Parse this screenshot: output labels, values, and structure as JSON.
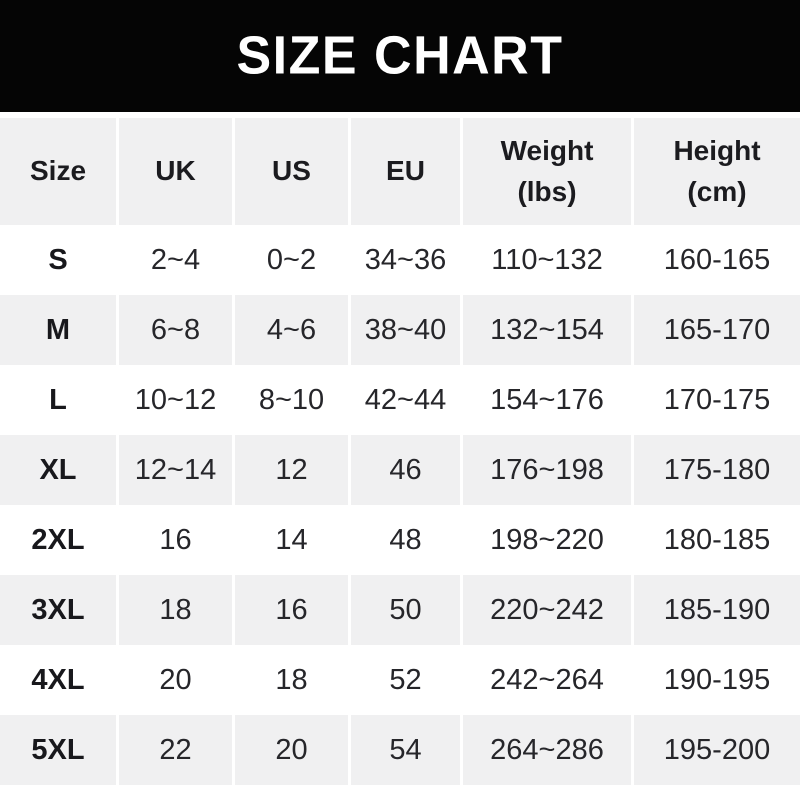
{
  "title": "SIZE CHART",
  "table": {
    "headers": [
      "Size",
      "UK",
      "US",
      "EU",
      "Weight\n(lbs)",
      "Height\n(cm)"
    ]
  },
  "chart_data": {
    "type": "table",
    "title": "SIZE CHART",
    "columns": [
      "Size",
      "UK",
      "US",
      "EU",
      "Weight (lbs)",
      "Height (cm)"
    ],
    "rows": [
      [
        "S",
        "2~4",
        "0~2",
        "34~36",
        "110~132",
        "160-165"
      ],
      [
        "M",
        "6~8",
        "4~6",
        "38~40",
        "132~154",
        "165-170"
      ],
      [
        "L",
        "10~12",
        "8~10",
        "42~44",
        "154~176",
        "170-175"
      ],
      [
        "XL",
        "12~14",
        "12",
        "46",
        "176~198",
        "175-180"
      ],
      [
        "2XL",
        "16",
        "14",
        "48",
        "198~220",
        "180-185"
      ],
      [
        "3XL",
        "18",
        "16",
        "50",
        "220~242",
        "185-190"
      ],
      [
        "4XL",
        "20",
        "18",
        "52",
        "242~264",
        "190-195"
      ],
      [
        "5XL",
        "22",
        "20",
        "54",
        "264~286",
        "195-200"
      ]
    ],
    "layout": {
      "striping": "alternating rows, gray on even data rows (M, XL, 3XL, 5XL)",
      "header_position": "top"
    }
  },
  "colors": {
    "banner_bg": "#050505",
    "title_text": "#ffffff",
    "header_bg": "#f0f0f1",
    "row_alt_bg": "#f0f0f1",
    "row_bg": "#ffffff",
    "text": "#26262a",
    "text_bold": "#18181c"
  }
}
